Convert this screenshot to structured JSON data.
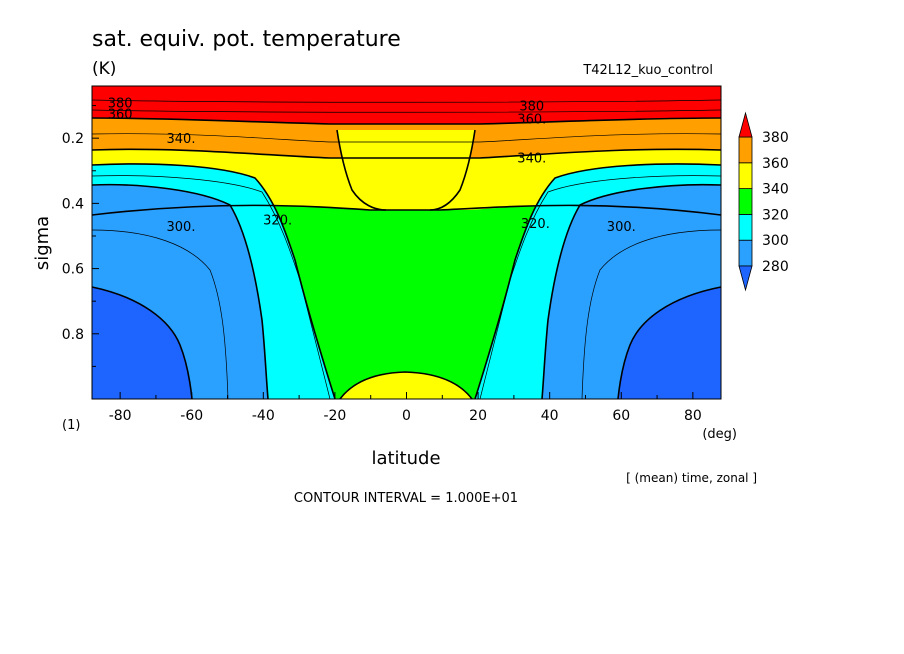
{
  "chart_data": {
    "type": "contour",
    "title": "sat. equiv. pot. temperature",
    "units": "(K)",
    "run_label": "T42L12_kuo_control",
    "xlabel": "latitude",
    "x_units": "(deg)",
    "ylabel": "sigma",
    "y_units": "(1)",
    "xlim": [
      -87.86,
      87.86
    ],
    "ylim": [
      1.0,
      0.04
    ],
    "x_ticks": [
      -80,
      -60,
      -40,
      -20,
      0,
      20,
      40,
      60,
      80
    ],
    "x_tick_labels": [
      "-80",
      "-60",
      "-40",
      "-20",
      "0",
      "20",
      "40",
      "60",
      "80"
    ],
    "y_ticks": [
      0.2,
      0.4,
      0.6,
      0.8
    ],
    "y_tick_labels": [
      "0.2",
      "0.4",
      "0.6",
      "0.8"
    ],
    "averaging_note": "[ (mean) time, zonal ]",
    "contour_interval_text": "CONTOUR INTERVAL = 1.000E+01",
    "colorbar": {
      "levels": [
        280,
        300,
        320,
        340,
        360,
        380
      ],
      "labels": [
        "280",
        "300",
        "320",
        "340",
        "360",
        "380"
      ],
      "colors": [
        "#1e64ff",
        "#2aa0ff",
        "#00ffff",
        "#00ff00",
        "#ffff00",
        "#ffa000",
        "#ff0000"
      ]
    },
    "contour_labels": [
      {
        "text": "380",
        "lat": -80,
        "sigma": 0.09
      },
      {
        "text": "360",
        "lat": -80,
        "sigma": 0.125
      },
      {
        "text": "340.",
        "lat": -63,
        "sigma": 0.2
      },
      {
        "text": "300.",
        "lat": -63,
        "sigma": 0.47
      },
      {
        "text": "320.",
        "lat": -36,
        "sigma": 0.45
      },
      {
        "text": "380",
        "lat": 35,
        "sigma": 0.1
      },
      {
        "text": "360.",
        "lat": 35,
        "sigma": 0.14
      },
      {
        "text": "340.",
        "lat": 35,
        "sigma": 0.26
      },
      {
        "text": "320.",
        "lat": 36,
        "sigma": 0.46
      },
      {
        "text": "300.",
        "lat": 60,
        "sigma": 0.47
      }
    ]
  }
}
